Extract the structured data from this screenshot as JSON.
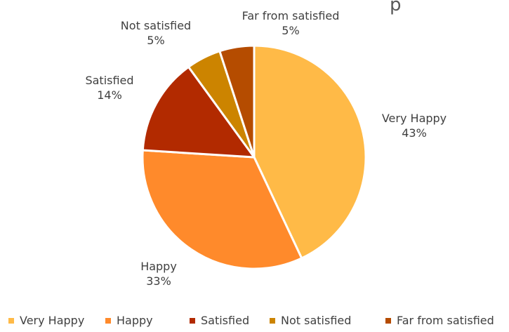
{
  "chart_data": {
    "type": "pie",
    "title": "",
    "title_visible_fragment": "p",
    "categories": [
      "Very Happy",
      "Happy",
      "Satisfied",
      "Not satisfied",
      "Far from satisfied"
    ],
    "values": [
      43,
      33,
      14,
      5,
      5
    ],
    "value_labels": [
      "43%",
      "33%",
      "14%",
      "5%",
      "5%"
    ],
    "colors": [
      "#FFBA47",
      "#FF8A2B",
      "#B22A00",
      "#CC8400",
      "#B54C00"
    ],
    "legend_position": "bottom",
    "start_angle_deg": 0,
    "direction": "clockwise"
  }
}
